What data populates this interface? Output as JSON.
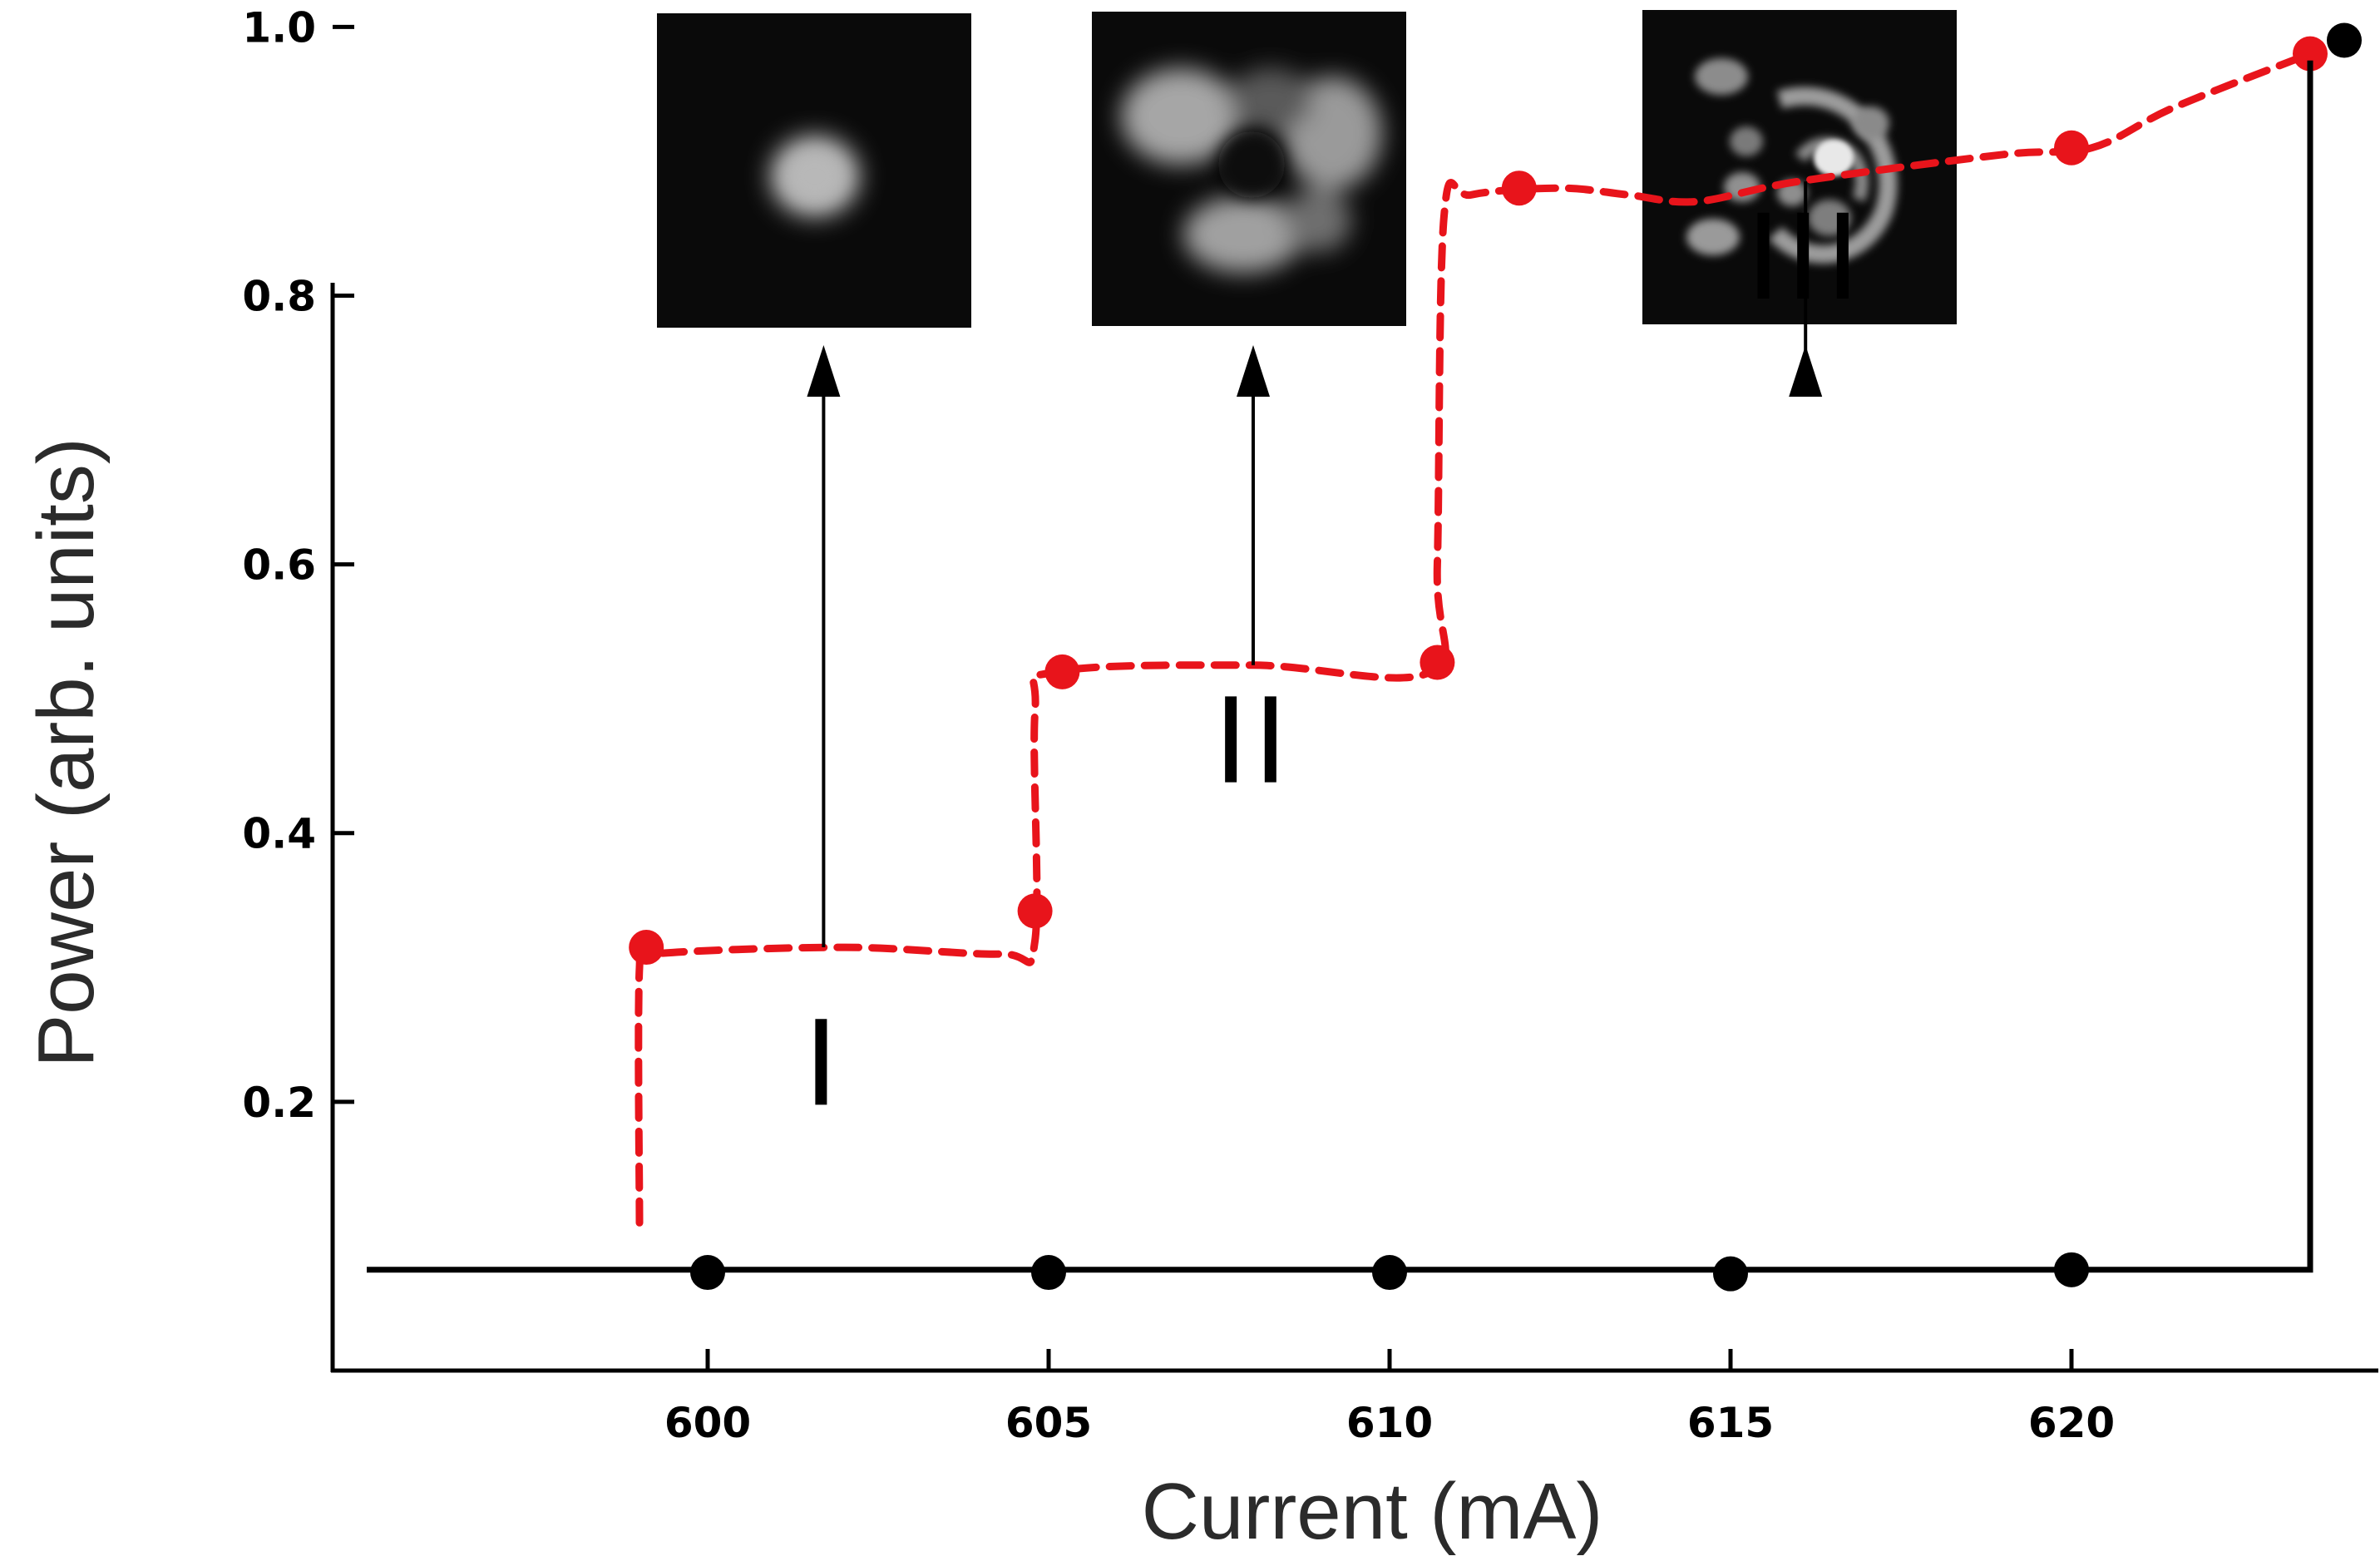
{
  "chart_data": {
    "type": "line",
    "xlabel": "Current (mA)",
    "ylabel": "Power (arb. units)",
    "xlim": [
      594.5,
      624.5
    ],
    "ylim": [
      0.0,
      1.02
    ],
    "x_ticks": [
      {
        "value": 600,
        "label": "600"
      },
      {
        "value": 605,
        "label": "605"
      },
      {
        "value": 610,
        "label": "610"
      },
      {
        "value": 615,
        "label": "615"
      },
      {
        "value": 620,
        "label": "620"
      }
    ],
    "y_ticks": [
      {
        "value": 0.2,
        "label": "0.2"
      },
      {
        "value": 0.4,
        "label": "0.4"
      },
      {
        "value": 0.6,
        "label": "0.6"
      },
      {
        "value": 0.8,
        "label": "0.8"
      },
      {
        "value": 1.0,
        "label": "1.0"
      }
    ],
    "grid": false,
    "legend": "none",
    "series": [
      {
        "color": "#e8141b",
        "style": "dashed",
        "marker_x": [
          599.1,
          604.8,
          605.2,
          610.7,
          611.9,
          620.0,
          623.5
        ],
        "marker_y": [
          0.315,
          0.342,
          0.52,
          0.527,
          0.88,
          0.91,
          0.98
        ],
        "curve_x": [
          599.0,
          599.0,
          599.2,
          602.0,
          604.3,
          604.8,
          604.8,
          605.1,
          608.0,
          610.6,
          610.7,
          610.8,
          611.2,
          612.5,
          613.5,
          614.5,
          616.0,
          619.0,
          620.3,
          621.5,
          623.5
        ],
        "curve_y": [
          0.11,
          0.3,
          0.31,
          0.315,
          0.31,
          0.32,
          0.49,
          0.52,
          0.525,
          0.52,
          0.6,
          0.86,
          0.875,
          0.88,
          0.875,
          0.87,
          0.885,
          0.905,
          0.91,
          0.94,
          0.98
        ]
      },
      {
        "color": "#000000",
        "style": "solid",
        "marker_x": [
          600,
          605,
          610,
          615,
          620,
          624.0
        ],
        "marker_y": [
          0.073,
          0.073,
          0.073,
          0.072,
          0.075,
          0.99
        ],
        "curve_x": [
          595.0,
          623.5,
          623.5
        ],
        "curve_y": [
          0.075,
          0.075,
          0.975
        ]
      }
    ],
    "annotations": [
      {
        "label": "I",
        "x": 601.7,
        "label_y": 0.23,
        "arrow_from_y": 0.315
      },
      {
        "label": "II",
        "x": 608.0,
        "label_y": 0.47,
        "arrow_from_y": 0.525
      },
      {
        "label": "III",
        "x": 616.1,
        "label_y": 0.83,
        "arrow_from_y": 0.885
      }
    ],
    "inset_images": [
      {
        "pattern": "single-lobe-spot",
        "annotation": "I"
      },
      {
        "pattern": "three-lobe-ring",
        "annotation": "II"
      },
      {
        "pattern": "multi-lobe-speckle",
        "annotation": "III"
      }
    ]
  }
}
